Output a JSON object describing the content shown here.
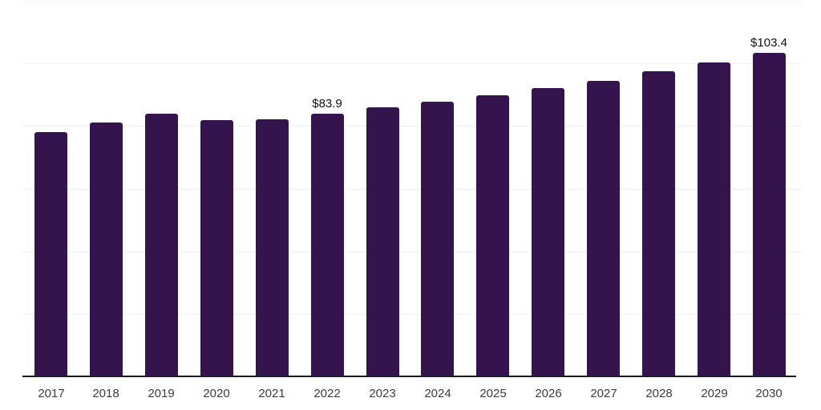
{
  "chart_data": {
    "type": "bar",
    "title": "",
    "xlabel": "",
    "ylabel": "",
    "categories": [
      "2017",
      "2018",
      "2019",
      "2020",
      "2021",
      "2022",
      "2023",
      "2024",
      "2025",
      "2026",
      "2027",
      "2028",
      "2029",
      "2030"
    ],
    "values": [
      78.0,
      81.1,
      83.8,
      81.9,
      82.1,
      83.9,
      86.0,
      87.8,
      89.8,
      92.1,
      94.4,
      97.4,
      100.3,
      103.4
    ],
    "data_labels": {
      "2022": "$83.9",
      "2030": "$103.4"
    },
    "ylim": [
      0,
      120
    ],
    "gridline_interval": 20,
    "grid": "horizontal-only",
    "legend": "none",
    "y_tick_labels": "none",
    "colors": {
      "bar": "#35134c",
      "gridline": "#f0f0f2",
      "axis_line": "#1a1a1a",
      "tick_label": "#3c3c3c",
      "data_label": "#101010",
      "background": "#ffffff"
    }
  }
}
